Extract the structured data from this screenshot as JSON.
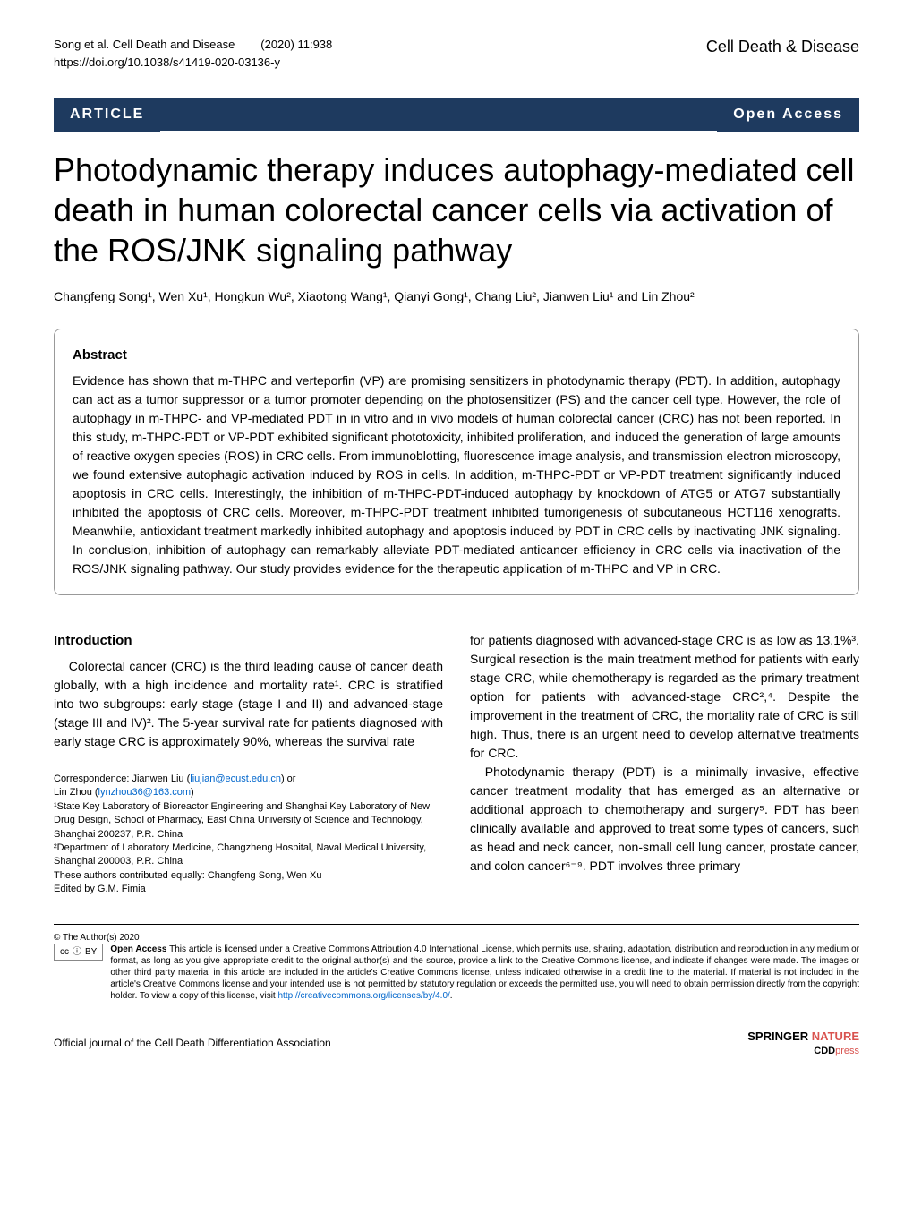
{
  "header": {
    "citation": "Song et al. Cell Death and Disease",
    "issue": "(2020) 11:938",
    "doi": "https://doi.org/10.1038/s41419-020-03136-y",
    "journal": "Cell Death & Disease"
  },
  "article_bar": {
    "label": "ARTICLE",
    "open_access": "Open Access"
  },
  "title": "Photodynamic therapy induces autophagy-mediated cell death in human colorectal cancer cells via activation of the ROS/JNK signaling pathway",
  "authors": "Changfeng Song¹, Wen Xu¹, Hongkun Wu², Xiaotong Wang¹, Qianyi Gong¹, Chang Liu², Jianwen Liu¹ and Lin Zhou²",
  "abstract": {
    "heading": "Abstract",
    "text": "Evidence has shown that m-THPC and verteporfin (VP) are promising sensitizers in photodynamic therapy (PDT). In addition, autophagy can act as a tumor suppressor or a tumor promoter depending on the photosensitizer (PS) and the cancer cell type. However, the role of autophagy in m-THPC- and VP-mediated PDT in in vitro and in vivo models of human colorectal cancer (CRC) has not been reported. In this study, m-THPC-PDT or VP-PDT exhibited significant phototoxicity, inhibited proliferation, and induced the generation of large amounts of reactive oxygen species (ROS) in CRC cells. From immunoblotting, fluorescence image analysis, and transmission electron microscopy, we found extensive autophagic activation induced by ROS in cells. In addition, m-THPC-PDT or VP-PDT treatment significantly induced apoptosis in CRC cells. Interestingly, the inhibition of m-THPC-PDT-induced autophagy by knockdown of ATG5 or ATG7 substantially inhibited the apoptosis of CRC cells. Moreover, m-THPC-PDT treatment inhibited tumorigenesis of subcutaneous HCT116 xenografts. Meanwhile, antioxidant treatment markedly inhibited autophagy and apoptosis induced by PDT in CRC cells by inactivating JNK signaling. In conclusion, inhibition of autophagy can remarkably alleviate PDT-mediated anticancer efficiency in CRC cells via inactivation of the ROS/JNK signaling pathway. Our study provides evidence for the therapeutic application of m-THPC and VP in CRC."
  },
  "intro": {
    "heading": "Introduction",
    "p1": "Colorectal cancer (CRC) is the third leading cause of cancer death globally, with a high incidence and mortality rate¹. CRC is stratified into two subgroups: early stage (stage I and II) and advanced-stage (stage III and IV)². The 5-year survival rate for patients diagnosed with early stage CRC is approximately 90%, whereas the survival rate",
    "p2": "for patients diagnosed with advanced-stage CRC is as low as 13.1%³. Surgical resection is the main treatment method for patients with early stage CRC, while chemotherapy is regarded as the primary treatment option for patients with advanced-stage CRC²,⁴. Despite the improvement in the treatment of CRC, the mortality rate of CRC is still high. Thus, there is an urgent need to develop alternative treatments for CRC.",
    "p3": "Photodynamic therapy (PDT) is a minimally invasive, effective cancer treatment modality that has emerged as an alternative or additional approach to chemotherapy and surgery⁵. PDT has been clinically available and approved to treat some types of cancers, such as head and neck cancer, non-small cell lung cancer, prostate cancer, and colon cancer⁶⁻⁹. PDT involves three primary"
  },
  "correspondence": {
    "line1": "Correspondence: Jianwen Liu (",
    "email1": "liujian@ecust.edu.cn",
    "line1_end": ") or",
    "line2": "Lin Zhou (",
    "email2": "lynzhou36@163.com",
    "line2_end": ")",
    "affil1": "¹State Key Laboratory of Bioreactor Engineering and Shanghai Key Laboratory of New Drug Design, School of Pharmacy, East China University of Science and Technology, Shanghai 200237, P.R. China",
    "affil2": "²Department of Laboratory Medicine, Changzheng Hospital, Naval Medical University, Shanghai 200003, P.R. China",
    "equal": "These authors contributed equally: Changfeng Song, Wen Xu",
    "edited": "Edited by G.M. Fimia"
  },
  "license": {
    "copyright": "© The Author(s) 2020",
    "cc_label": "cc",
    "by_label": "BY",
    "heading": "Open Access",
    "text": " This article is licensed under a Creative Commons Attribution 4.0 International License, which permits use, sharing, adaptation, distribution and reproduction in any medium or format, as long as you give appropriate credit to the original author(s) and the source, provide a link to the Creative Commons license, and indicate if changes were made. The images or other third party material in this article are included in the article's Creative Commons license, unless indicated otherwise in a credit line to the material. If material is not included in the article's Creative Commons license and your intended use is not permitted by statutory regulation or exceeds the permitted use, you will need to obtain permission directly from the copyright holder. To view a copy of this license, visit ",
    "url": "http://creativecommons.org/licenses/by/4.0/"
  },
  "footer": {
    "left": "Official journal of the Cell Death Differentiation Association",
    "springer": "SPRINGER",
    "nature": "NATURE",
    "cdd": "CDD",
    "press": "press"
  },
  "colors": {
    "bar_bg": "#1e3a5f",
    "link": "#0066cc",
    "accent_red": "#d9534f"
  }
}
